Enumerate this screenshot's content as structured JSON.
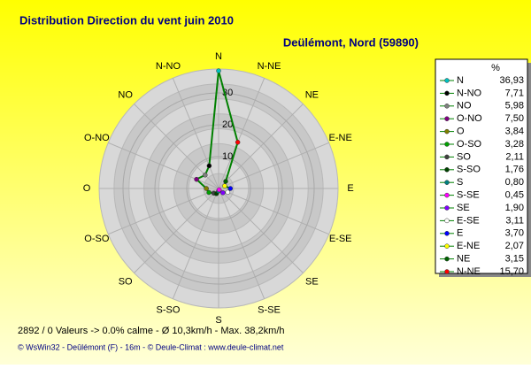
{
  "chart_data": {
    "type": "radar",
    "title": "Distribution Direction du vent   juin 2010",
    "subtitle": "Deülémont, Nord (59890)",
    "legend_title": "%",
    "categories": [
      "N",
      "N-NO",
      "NO",
      "O-NO",
      "O",
      "O-SO",
      "SO",
      "S-SO",
      "S",
      "S-SE",
      "SE",
      "E-SE",
      "E",
      "E-NE",
      "NE",
      "N-NE"
    ],
    "values": [
      36.93,
      7.71,
      5.98,
      7.5,
      3.84,
      3.28,
      2.11,
      1.76,
      0.8,
      0.45,
      1.9,
      3.11,
      3.7,
      2.07,
      3.15,
      15.7
    ],
    "value_labels": [
      "36,93",
      "7,71",
      "5,98",
      "7,50",
      "3,84",
      "3,28",
      "2,11",
      "1,76",
      "0,80",
      "0,45",
      "1,90",
      "3,11",
      "3,70",
      "2,07",
      "3,15",
      "15,70"
    ],
    "marker_colors": [
      "#00c0c0",
      "#000000",
      "#808080",
      "#800080",
      "#808000",
      "#00a000",
      "#404040",
      "#004000",
      "#008080",
      "#ff00ff",
      "#8000ff",
      "#ffffff",
      "#0000ff",
      "#ffff00",
      "#006000",
      "#ff0000"
    ],
    "color": "#008000",
    "rlim": [
      0,
      37.5
    ],
    "rticks": [
      10,
      20,
      30
    ]
  },
  "footer": {
    "stats": "2892 / 0 Valeurs  -> 0.0% calme  -  Ø 10,3km/h  -  Max. 38,2km/h",
    "credits": "© WsWin32  -  Deûlémont (F) - 16m  -  © Deule-Climat : www.deule-climat.net"
  }
}
